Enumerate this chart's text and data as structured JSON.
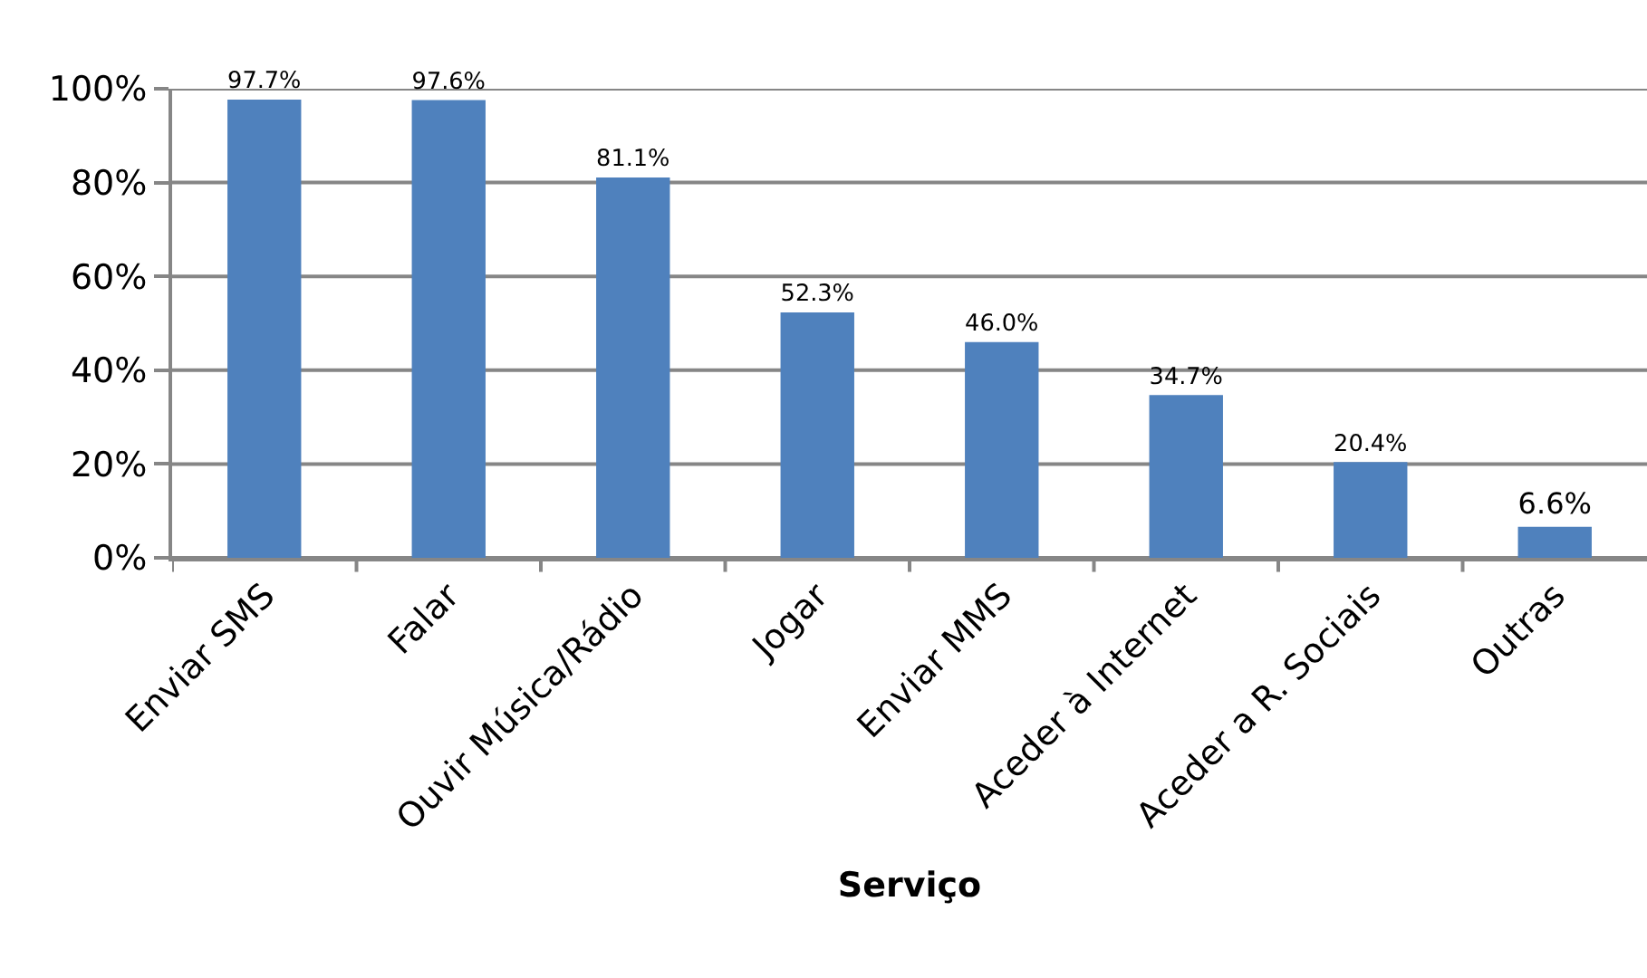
{
  "chart_data": {
    "type": "bar",
    "xlabel": "Serviço",
    "categories": [
      "Enviar SMS",
      "Falar",
      "Ouvir Música/Rádio",
      "Jogar",
      "Enviar MMS",
      "Aceder à Internet",
      "Aceder a R. Sociais",
      "Outras"
    ],
    "values": [
      97.7,
      97.6,
      81.1,
      52.3,
      46.0,
      34.7,
      20.4,
      6.6
    ],
    "value_labels": [
      "97.7%",
      "97.6%",
      "81.1%",
      "52.3%",
      "46.0%",
      "34.7%",
      "20.4%",
      "6.6%"
    ],
    "color": "#4f81bd",
    "ylim": [
      0,
      100
    ],
    "yticks": [
      {
        "value": 0,
        "label": "0%"
      },
      {
        "value": 20,
        "label": "20%"
      },
      {
        "value": 40,
        "label": "40%"
      },
      {
        "value": 60,
        "label": "60%"
      },
      {
        "value": 80,
        "label": "80%"
      },
      {
        "value": 100,
        "label": "100%"
      }
    ],
    "grid": "y"
  }
}
